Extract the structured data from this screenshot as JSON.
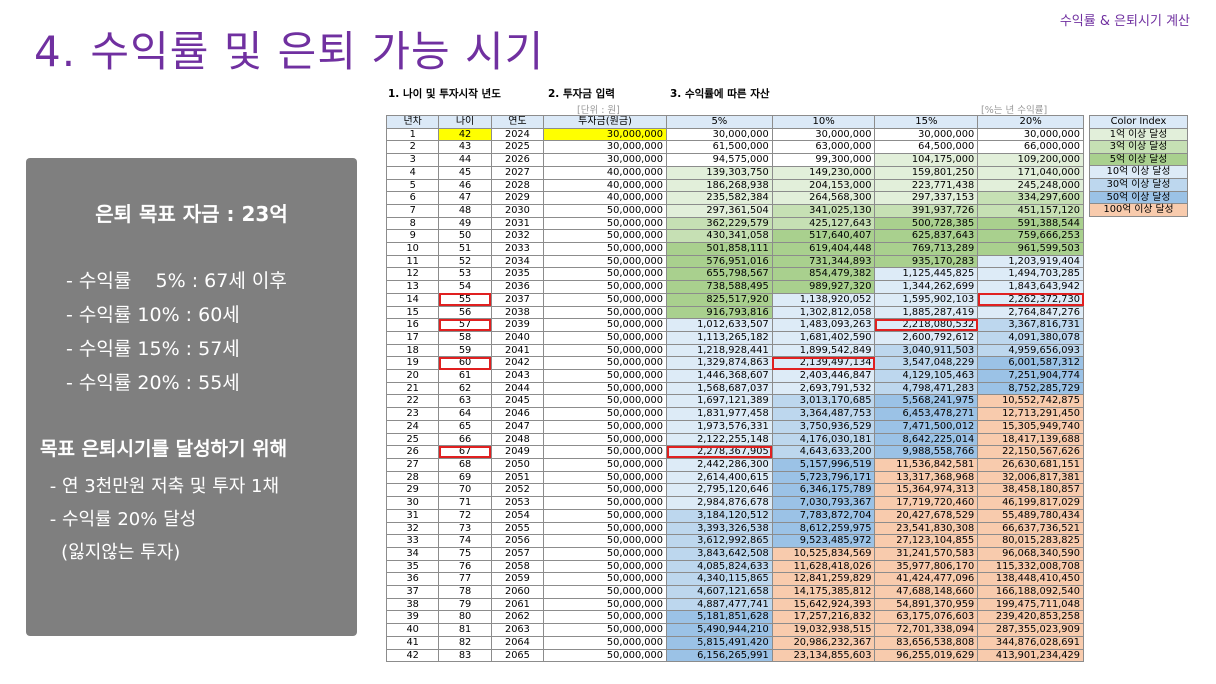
{
  "header": {
    "corner_label": "수익률 & 은퇴시기 계산",
    "title": "4. 수익률 및 은퇴 가능 시기"
  },
  "panel": {
    "heading": "은퇴 목표 자금 : 23억",
    "rates": [
      " - 수익률    5% : 67세 이후",
      " - 수익률 10% : 60세",
      " - 수익률 15% : 57세",
      " - 수익률 20% : 55세"
    ],
    "goal_heading": "목표 은퇴시기를 달성하기 위해",
    "goal_items": [
      " - 연 3천만원 저축 및 투자 1채",
      " - 수익률 20% 달성",
      "   (잃지않는 투자)"
    ]
  },
  "sheet": {
    "step1": "1. 나이 및 투자시작 년도",
    "step2": "2. 투자금 입력",
    "step3": "3. 수익률에 따른 자산",
    "unit_left": "[단위 : 원]",
    "unit_right": "[%는 년 수익률]",
    "columns": [
      "년차",
      "나이",
      "연도",
      "투자금(원금)",
      "5%",
      "10%",
      "15%",
      "20%"
    ],
    "rows": [
      [
        "1",
        "42",
        "2024",
        "30,000,000",
        "30,000,000",
        "30,000,000",
        "30,000,000",
        "30,000,000"
      ],
      [
        "2",
        "43",
        "2025",
        "30,000,000",
        "61,500,000",
        "63,000,000",
        "64,500,000",
        "66,000,000"
      ],
      [
        "3",
        "44",
        "2026",
        "30,000,000",
        "94,575,000",
        "99,300,000",
        "104,175,000",
        "109,200,000"
      ],
      [
        "4",
        "45",
        "2027",
        "40,000,000",
        "139,303,750",
        "149,230,000",
        "159,801,250",
        "171,040,000"
      ],
      [
        "5",
        "46",
        "2028",
        "40,000,000",
        "186,268,938",
        "204,153,000",
        "223,771,438",
        "245,248,000"
      ],
      [
        "6",
        "47",
        "2029",
        "40,000,000",
        "235,582,384",
        "264,568,300",
        "297,337,153",
        "334,297,600"
      ],
      [
        "7",
        "48",
        "2030",
        "50,000,000",
        "297,361,504",
        "341,025,130",
        "391,937,726",
        "451,157,120"
      ],
      [
        "8",
        "49",
        "2031",
        "50,000,000",
        "362,229,579",
        "425,127,643",
        "500,728,385",
        "591,388,544"
      ],
      [
        "9",
        "50",
        "2032",
        "50,000,000",
        "430,341,058",
        "517,640,407",
        "625,837,643",
        "759,666,253"
      ],
      [
        "10",
        "51",
        "2033",
        "50,000,000",
        "501,858,111",
        "619,404,448",
        "769,713,289",
        "961,599,503"
      ],
      [
        "11",
        "52",
        "2034",
        "50,000,000",
        "576,951,016",
        "731,344,893",
        "935,170,283",
        "1,203,919,404"
      ],
      [
        "12",
        "53",
        "2035",
        "50,000,000",
        "655,798,567",
        "854,479,382",
        "1,125,445,825",
        "1,494,703,285"
      ],
      [
        "13",
        "54",
        "2036",
        "50,000,000",
        "738,588,495",
        "989,927,320",
        "1,344,262,699",
        "1,843,643,942"
      ],
      [
        "14",
        "55",
        "2037",
        "50,000,000",
        "825,517,920",
        "1,138,920,052",
        "1,595,902,103",
        "2,262,372,730"
      ],
      [
        "15",
        "56",
        "2038",
        "50,000,000",
        "916,793,816",
        "1,302,812,058",
        "1,885,287,419",
        "2,764,847,276"
      ],
      [
        "16",
        "57",
        "2039",
        "50,000,000",
        "1,012,633,507",
        "1,483,093,263",
        "2,218,080,532",
        "3,367,816,731"
      ],
      [
        "17",
        "58",
        "2040",
        "50,000,000",
        "1,113,265,182",
        "1,681,402,590",
        "2,600,792,612",
        "4,091,380,078"
      ],
      [
        "18",
        "59",
        "2041",
        "50,000,000",
        "1,218,928,441",
        "1,899,542,849",
        "3,040,911,503",
        "4,959,656,093"
      ],
      [
        "19",
        "60",
        "2042",
        "50,000,000",
        "1,329,874,863",
        "2,139,497,134",
        "3,547,048,229",
        "6,001,587,312"
      ],
      [
        "20",
        "61",
        "2043",
        "50,000,000",
        "1,446,368,607",
        "2,403,446,847",
        "4,129,105,463",
        "7,251,904,774"
      ],
      [
        "21",
        "62",
        "2044",
        "50,000,000",
        "1,568,687,037",
        "2,693,791,532",
        "4,798,471,283",
        "8,752,285,729"
      ],
      [
        "22",
        "63",
        "2045",
        "50,000,000",
        "1,697,121,389",
        "3,013,170,685",
        "5,568,241,975",
        "10,552,742,875"
      ],
      [
        "23",
        "64",
        "2046",
        "50,000,000",
        "1,831,977,458",
        "3,364,487,753",
        "6,453,478,271",
        "12,713,291,450"
      ],
      [
        "24",
        "65",
        "2047",
        "50,000,000",
        "1,973,576,331",
        "3,750,936,529",
        "7,471,500,012",
        "15,305,949,740"
      ],
      [
        "25",
        "66",
        "2048",
        "50,000,000",
        "2,122,255,148",
        "4,176,030,181",
        "8,642,225,014",
        "18,417,139,688"
      ],
      [
        "26",
        "67",
        "2049",
        "50,000,000",
        "2,278,367,905",
        "4,643,633,200",
        "9,988,558,766",
        "22,150,567,626"
      ],
      [
        "27",
        "68",
        "2050",
        "50,000,000",
        "2,442,286,300",
        "5,157,996,519",
        "11,536,842,581",
        "26,630,681,151"
      ],
      [
        "28",
        "69",
        "2051",
        "50,000,000",
        "2,614,400,615",
        "5,723,796,171",
        "13,317,368,968",
        "32,006,817,381"
      ],
      [
        "29",
        "70",
        "2052",
        "50,000,000",
        "2,795,120,646",
        "6,346,175,789",
        "15,364,974,313",
        "38,458,180,857"
      ],
      [
        "30",
        "71",
        "2053",
        "50,000,000",
        "2,984,876,678",
        "7,030,793,367",
        "17,719,720,460",
        "46,199,817,029"
      ],
      [
        "31",
        "72",
        "2054",
        "50,000,000",
        "3,184,120,512",
        "7,783,872,704",
        "20,427,678,529",
        "55,489,780,434"
      ],
      [
        "32",
        "73",
        "2055",
        "50,000,000",
        "3,393,326,538",
        "8,612,259,975",
        "23,541,830,308",
        "66,637,736,521"
      ],
      [
        "33",
        "74",
        "2056",
        "50,000,000",
        "3,612,992,865",
        "9,523,485,972",
        "27,123,104,855",
        "80,015,283,825"
      ],
      [
        "34",
        "75",
        "2057",
        "50,000,000",
        "3,843,642,508",
        "10,525,834,569",
        "31,241,570,583",
        "96,068,340,590"
      ],
      [
        "35",
        "76",
        "2058",
        "50,000,000",
        "4,085,824,633",
        "11,628,418,026",
        "35,977,806,170",
        "115,332,008,708"
      ],
      [
        "36",
        "77",
        "2059",
        "50,000,000",
        "4,340,115,865",
        "12,841,259,829",
        "41,424,477,096",
        "138,448,410,450"
      ],
      [
        "37",
        "78",
        "2060",
        "50,000,000",
        "4,607,121,658",
        "14,175,385,812",
        "47,688,148,660",
        "166,188,092,540"
      ],
      [
        "38",
        "79",
        "2061",
        "50,000,000",
        "4,887,477,741",
        "15,642,924,393",
        "54,891,370,959",
        "199,475,711,048"
      ],
      [
        "39",
        "80",
        "2062",
        "50,000,000",
        "5,181,851,628",
        "17,257,216,832",
        "63,175,076,603",
        "239,420,853,258"
      ],
      [
        "40",
        "81",
        "2063",
        "50,000,000",
        "5,490,944,210",
        "19,032,938,515",
        "72,701,338,094",
        "287,355,023,909"
      ],
      [
        "41",
        "82",
        "2064",
        "50,000,000",
        "5,815,491,420",
        "20,986,232,367",
        "83,656,538,808",
        "344,876,028,691"
      ],
      [
        "42",
        "83",
        "2065",
        "50,000,000",
        "6,156,265,991",
        "23,134,855,603",
        "96,255,019,629",
        "413,901,234,429"
      ]
    ],
    "highlighted_cells": [
      {
        "row": "14",
        "col": "나이"
      },
      {
        "row": "16",
        "col": "나이"
      },
      {
        "row": "19",
        "col": "나이"
      },
      {
        "row": "26",
        "col": "나이"
      },
      {
        "row": "14",
        "col": "20%"
      },
      {
        "row": "16",
        "col": "15%"
      },
      {
        "row": "19",
        "col": "10%"
      },
      {
        "row": "26",
        "col": "5%"
      }
    ],
    "legend_title": "Color Index",
    "legend": [
      {
        "label": "1억 이상 달성",
        "color": "#e2efda"
      },
      {
        "label": "3억 이상 달성",
        "color": "#c6e0b4"
      },
      {
        "label": "5억 이상 달성",
        "color": "#a9d08e"
      },
      {
        "label": "10억 이상 달성",
        "color": "#ddebf7"
      },
      {
        "label": "30억 이상 달성",
        "color": "#bdd7ee"
      },
      {
        "label": "50억 이상 달성",
        "color": "#9bc2e6"
      },
      {
        "label": "100억 이상 달성",
        "color": "#f8cbad"
      }
    ]
  }
}
